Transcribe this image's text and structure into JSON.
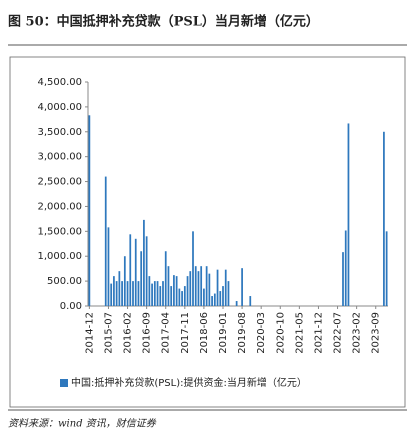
{
  "chart_data": {
    "type": "bar",
    "title": "图 50：中国抵押补充贷款（PSL）当月新增（亿元）",
    "source": "资料来源：wind 资讯，财信证券",
    "categories": [
      "2014-12",
      null,
      null,
      null,
      null,
      null,
      null,
      "2015-07",
      null,
      null,
      null,
      null,
      null,
      null,
      "2016-02",
      null,
      null,
      null,
      null,
      null,
      null,
      "2016-09",
      null,
      null,
      null,
      null,
      null,
      null,
      "2017-04",
      null,
      null,
      null,
      null,
      null,
      null,
      "2017-11",
      null,
      null,
      null,
      null,
      null,
      null,
      "2018-06",
      null,
      null,
      null,
      null,
      null,
      null,
      "2019-01",
      null,
      null,
      null,
      null,
      null,
      null,
      "2019-08",
      null,
      null,
      null,
      null,
      null,
      null,
      "2020-03",
      null,
      null,
      null,
      null,
      null,
      null,
      "2020-10",
      null,
      null,
      null,
      null,
      null,
      null,
      "2021-05",
      null,
      null,
      null,
      null,
      null,
      null,
      "2021-12",
      null,
      null,
      null,
      null,
      null,
      null,
      "2022-07",
      null,
      null,
      null,
      null,
      null,
      null,
      "2023-02",
      null,
      null,
      null,
      null,
      null,
      null,
      "2023-09",
      null,
      null,
      null,
      null
    ],
    "series": [
      {
        "name": "中国:抵押补充贷款(PSL):提供资金:当月新增（亿元）",
        "color": "#2e78bd",
        "values": [
          3831,
          0,
          0,
          0,
          0,
          0,
          2600,
          1580,
          450,
          600,
          500,
          700,
          500,
          1000,
          500,
          1440,
          500,
          1350,
          500,
          1100,
          1730,
          1400,
          600,
          450,
          500,
          500,
          400,
          500,
          1100,
          800,
          400,
          620,
          600,
          350,
          300,
          400,
          600,
          700,
          1500,
          800,
          700,
          800,
          350,
          800,
          650,
          200,
          250,
          730,
          300,
          400,
          730,
          500,
          0,
          0,
          100,
          0,
          760,
          0,
          0,
          200,
          0,
          0,
          0,
          0,
          0,
          0,
          0,
          0,
          0,
          0,
          0,
          0,
          0,
          0,
          0,
          0,
          0,
          0,
          0,
          0,
          0,
          0,
          0,
          0,
          0,
          0,
          0,
          0,
          0,
          0,
          0,
          0,
          0,
          1082,
          1517,
          3667,
          0,
          0,
          0,
          0,
          0,
          0,
          0,
          0,
          0,
          0,
          0,
          0,
          3500,
          1500
        ]
      }
    ],
    "ylim": [
      0,
      4500
    ],
    "yticks": [
      {
        "value": 0,
        "label": "0.00"
      },
      {
        "value": 500,
        "label": "500.00"
      },
      {
        "value": 1000,
        "label": "1,000.00"
      },
      {
        "value": 1500,
        "label": "1,500.00"
      },
      {
        "value": 2000,
        "label": "2,000.00"
      },
      {
        "value": 2500,
        "label": "2,500.00"
      },
      {
        "value": 3000,
        "label": "3,000.00"
      },
      {
        "value": 3500,
        "label": "3,500.00"
      },
      {
        "value": 4000,
        "label": "4,000.00"
      },
      {
        "value": 4500,
        "label": "4,500.00"
      }
    ],
    "grid": false,
    "legend": "bottom"
  }
}
